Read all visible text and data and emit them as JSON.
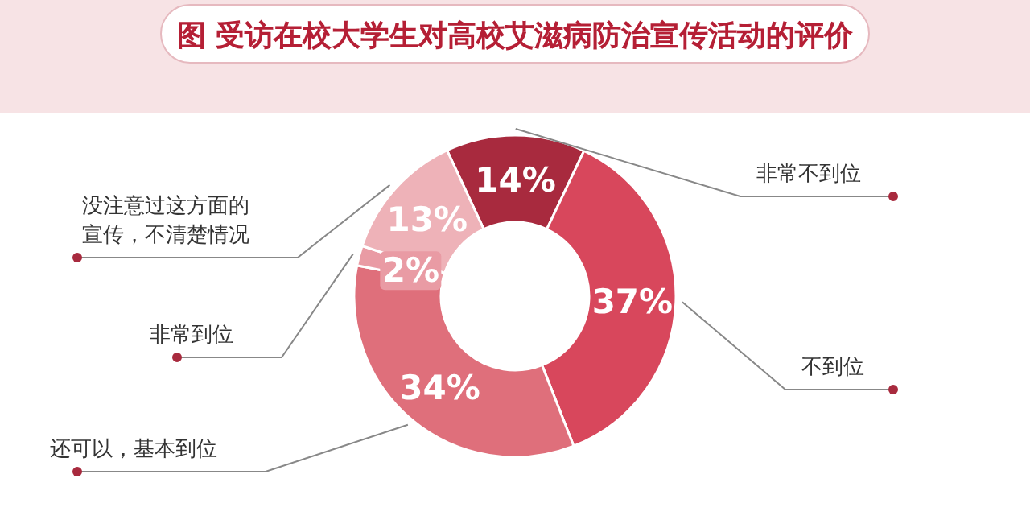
{
  "chart_data": {
    "type": "donut",
    "title": "图 受访在校大学生对高校艾滋病防治宣传活动的评价",
    "categories": [
      "非常不到位",
      "不到位",
      "还可以，基本到位",
      "非常到位",
      "没注意过这方面的宣传，不清楚情况"
    ],
    "values": [
      14,
      37,
      34,
      2,
      13
    ],
    "value_labels": [
      "14%",
      "37%",
      "34%",
      "2%",
      "13%"
    ],
    "colors": [
      "#a82a3e",
      "#d8475c",
      "#df6f7b",
      "#e99ba4",
      "#eeb2b8"
    ]
  }
}
